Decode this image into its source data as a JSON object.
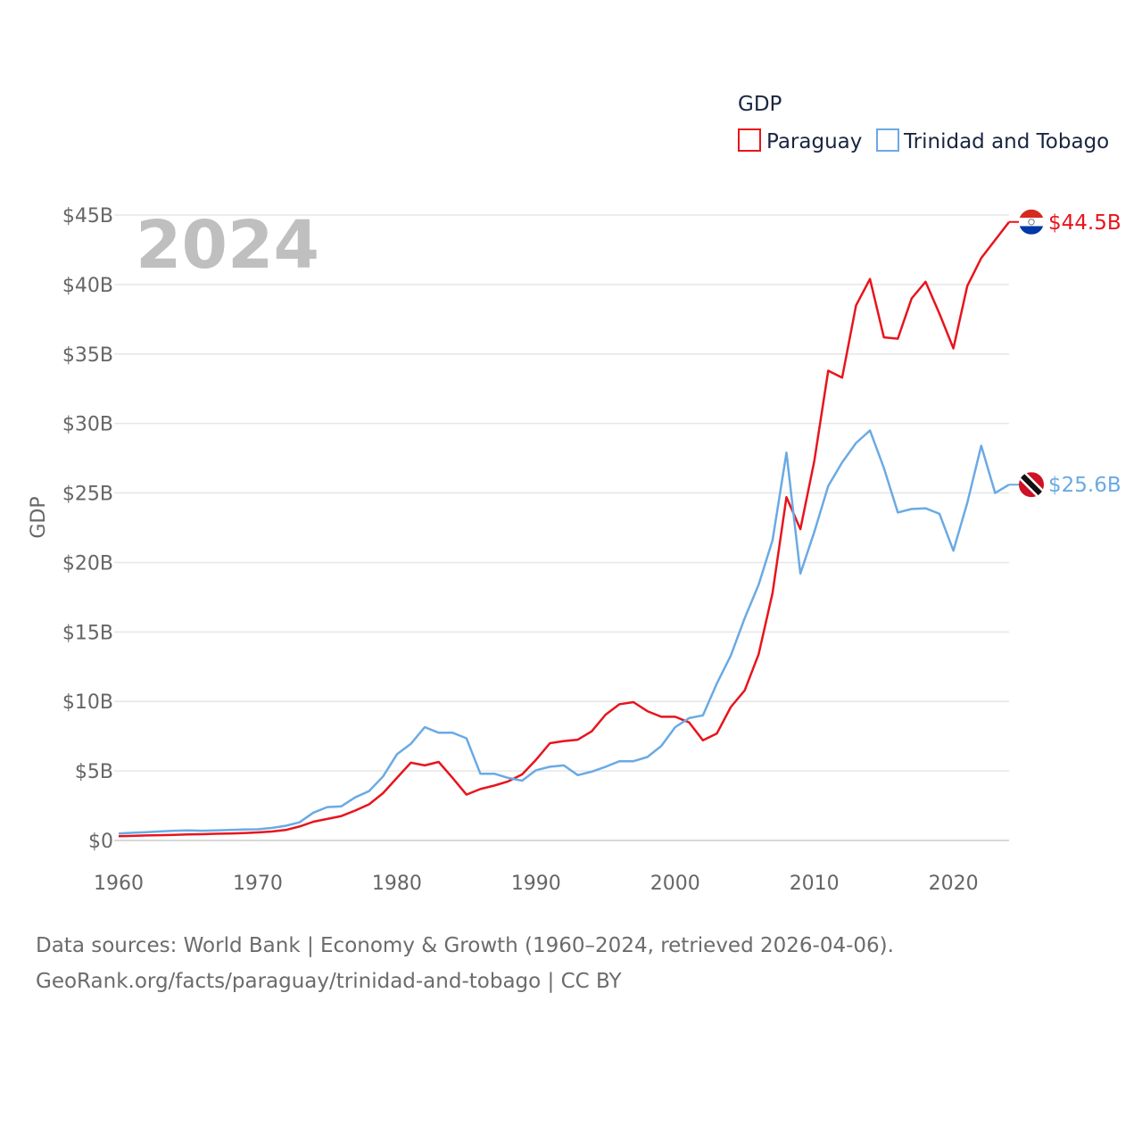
{
  "chart_data": {
    "type": "line",
    "year_label": "2024",
    "ylabel": "GDP",
    "xlim": [
      1960,
      2024
    ],
    "ylim": [
      0,
      45
    ],
    "x_ticks": [
      "1960",
      "1970",
      "1980",
      "1990",
      "2000",
      "2010",
      "2020"
    ],
    "x_tick_values": [
      1960,
      1970,
      1980,
      1990,
      2000,
      2010,
      2020
    ],
    "y_ticks": [
      "$0",
      "$5B",
      "$10B",
      "$15B",
      "$20B",
      "$25B",
      "$30B",
      "$35B",
      "$40B",
      "$45B"
    ],
    "y_tick_values": [
      0,
      5,
      10,
      15,
      20,
      25,
      30,
      35,
      40,
      45
    ],
    "legend": {
      "title": "GDP",
      "position": "top-right"
    },
    "x": [
      1960,
      1961,
      1962,
      1963,
      1964,
      1965,
      1966,
      1967,
      1968,
      1969,
      1970,
      1971,
      1972,
      1973,
      1974,
      1975,
      1976,
      1977,
      1978,
      1979,
      1980,
      1981,
      1982,
      1983,
      1984,
      1985,
      1986,
      1987,
      1988,
      1989,
      1990,
      1991,
      1992,
      1993,
      1994,
      1995,
      1996,
      1997,
      1998,
      1999,
      2000,
      2001,
      2002,
      2003,
      2004,
      2005,
      2006,
      2007,
      2008,
      2009,
      2010,
      2011,
      2012,
      2013,
      2014,
      2015,
      2016,
      2017,
      2018,
      2019,
      2020,
      2021,
      2022,
      2023,
      2024
    ],
    "series": [
      {
        "name": "Paraguay",
        "color": "#e8141c",
        "end_label": "$44.5B",
        "flag": "paraguay-flag-icon",
        "values": [
          0.3,
          0.33,
          0.36,
          0.38,
          0.4,
          0.43,
          0.45,
          0.48,
          0.5,
          0.53,
          0.58,
          0.64,
          0.75,
          1.0,
          1.35,
          1.55,
          1.75,
          2.15,
          2.6,
          3.4,
          4.5,
          5.6,
          5.4,
          5.65,
          4.5,
          3.3,
          3.7,
          3.95,
          4.25,
          4.75,
          5.8,
          7.0,
          7.15,
          7.25,
          7.85,
          9.05,
          9.8,
          9.95,
          9.3,
          8.9,
          8.9,
          8.5,
          7.2,
          7.7,
          9.6,
          10.8,
          13.4,
          17.8,
          24.7,
          22.4,
          27.3,
          33.8,
          33.3,
          38.5,
          40.4,
          36.2,
          36.1,
          39.0,
          40.2,
          37.9,
          35.4,
          39.9,
          41.9,
          43.2,
          44.5
        ]
      },
      {
        "name": "Trinidad and Tobago",
        "color": "#6aaae4",
        "end_label": "$25.6B",
        "flag": "trinidad-and-tobago-flag-icon",
        "values": [
          0.5,
          0.55,
          0.6,
          0.65,
          0.7,
          0.72,
          0.7,
          0.72,
          0.75,
          0.78,
          0.8,
          0.9,
          1.05,
          1.3,
          2.0,
          2.4,
          2.45,
          3.1,
          3.55,
          4.6,
          6.2,
          6.95,
          8.15,
          7.75,
          7.75,
          7.35,
          4.8,
          4.8,
          4.5,
          4.3,
          5.05,
          5.3,
          5.4,
          4.7,
          4.95,
          5.3,
          5.7,
          5.7,
          6.0,
          6.8,
          8.15,
          8.8,
          9.0,
          11.3,
          13.3,
          16.0,
          18.4,
          21.6,
          27.9,
          19.2,
          22.2,
          25.5,
          27.2,
          28.6,
          29.5,
          26.8,
          23.6,
          23.85,
          23.9,
          23.5,
          20.85,
          24.3,
          28.4,
          25.0,
          25.6
        ]
      }
    ]
  },
  "source": {
    "line1": "Data sources: World Bank | Economy & Growth (1960–2024, retrieved 2026-04-06).",
    "line2": "GeoRank.org/facts/paraguay/trinidad-and-tobago | CC BY"
  }
}
